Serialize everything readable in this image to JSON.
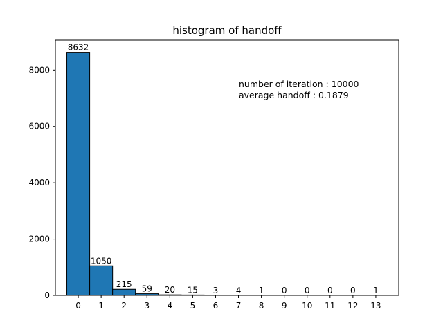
{
  "chart_data": {
    "type": "bar",
    "title": "histogram of handoff",
    "xlabel": "",
    "ylabel": "",
    "categories": [
      "0",
      "1",
      "2",
      "3",
      "4",
      "5",
      "6",
      "7",
      "8",
      "9",
      "10",
      "11",
      "12",
      "13"
    ],
    "values": [
      8632,
      1050,
      215,
      59,
      20,
      15,
      3,
      4,
      1,
      0,
      0,
      0,
      0,
      1
    ],
    "data_labels": [
      "8632",
      "1050",
      "215",
      "59",
      "20",
      "15",
      "3",
      "4",
      "1",
      "0",
      "0",
      "0",
      "0",
      "1"
    ],
    "ylim": [
      0,
      9064
    ],
    "yticks": [
      0,
      2000,
      4000,
      6000,
      8000
    ],
    "ytick_labels": [
      "0",
      "2000",
      "4000",
      "6000",
      "8000"
    ],
    "bar_color": "#1f77b4",
    "edge_color": "#000000",
    "grid": false,
    "annotations": [
      "number of iteration : 10000",
      "average handoff : 0.1879"
    ]
  }
}
